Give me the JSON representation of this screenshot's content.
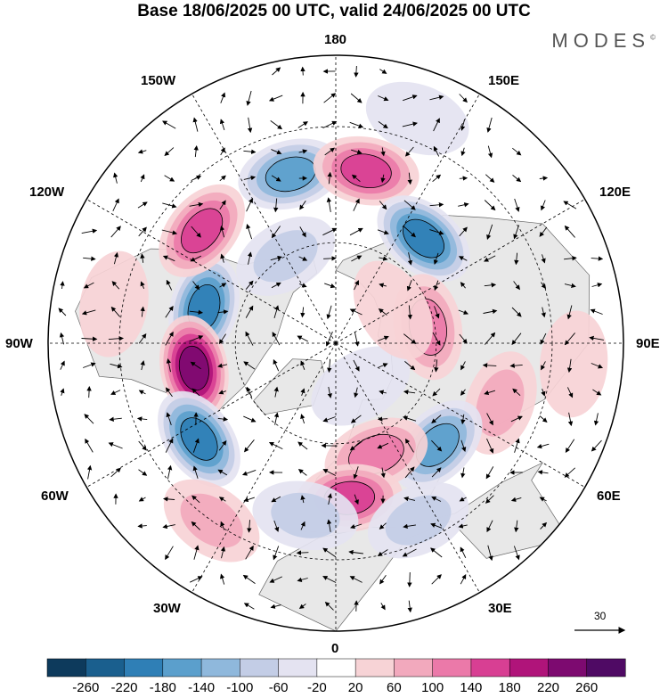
{
  "title": "Base 18/06/2025 00 UTC, valid 24/06/2025 00 UTC",
  "brand": "MODES",
  "brand_mark": "©",
  "longitude_labels": {
    "top": "180",
    "top_left": "150W",
    "top_right": "150E",
    "upper_left": "120W",
    "upper_right": "120E",
    "left": "90W",
    "right": "90E",
    "lower_left": "60W",
    "lower_right": "60E",
    "bottom_left": "30W",
    "bottom_right": "30E",
    "bottom": "0"
  },
  "wind_reference": {
    "value": "30"
  },
  "colorbar": {
    "ticks": [
      "-260",
      "-220",
      "-180",
      "-140",
      "-100",
      "-60",
      "-20",
      "20",
      "60",
      "100",
      "140",
      "180",
      "220",
      "260"
    ],
    "colors": [
      "#0d3a5c",
      "#1a5f8e",
      "#2f7fb6",
      "#5b9fcc",
      "#8fb8dc",
      "#c3cde6",
      "#e4e3f1",
      "#ffffff",
      "#f7d3d6",
      "#f2a9bd",
      "#eb79a9",
      "#d83f93",
      "#b0147a",
      "#7d0a70",
      "#4f0a64"
    ]
  },
  "map": {
    "land_color": "#e8e8e8",
    "anomalies": [
      {
        "lon": -105,
        "lat": 50,
        "value": -200
      },
      {
        "lon": -80,
        "lat": 48,
        "value": 250
      },
      {
        "lon": -55,
        "lat": 42,
        "value": -200
      },
      {
        "lon": -130,
        "lat": 40,
        "value": 160
      },
      {
        "lon": -165,
        "lat": 40,
        "value": -160
      },
      {
        "lon": 170,
        "lat": 40,
        "value": 170
      },
      {
        "lon": 140,
        "lat": 50,
        "value": -180
      },
      {
        "lon": 100,
        "lat": 62,
        "value": 110
      },
      {
        "lon": 70,
        "lat": 40,
        "value": 60
      },
      {
        "lon": 45,
        "lat": 48,
        "value": -160
      },
      {
        "lon": 20,
        "lat": 55,
        "value": 110
      },
      {
        "lon": 5,
        "lat": 45,
        "value": 140
      },
      {
        "lon": -10,
        "lat": 40,
        "value": -80
      },
      {
        "lon": 25,
        "lat": 35,
        "value": -80
      },
      {
        "lon": -35,
        "lat": 30,
        "value": 60
      },
      {
        "lon": -100,
        "lat": 28,
        "value": 50
      },
      {
        "lon": 160,
        "lat": 25,
        "value": -40
      },
      {
        "lon": 85,
        "lat": 25,
        "value": 40
      },
      {
        "lon": 30,
        "lat": 75,
        "value": -40
      },
      {
        "lon": -150,
        "lat": 60,
        "value": -60
      },
      {
        "lon": 120,
        "lat": 70,
        "value": 50
      }
    ]
  }
}
